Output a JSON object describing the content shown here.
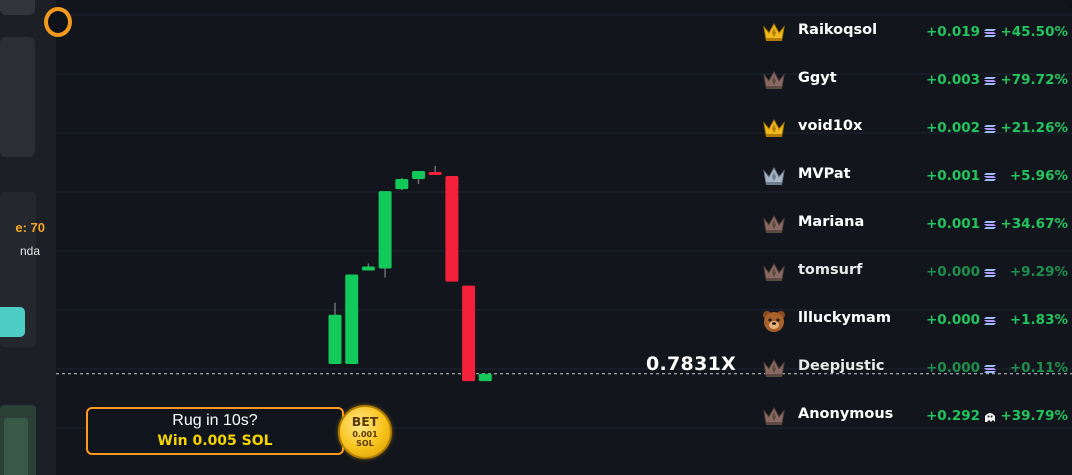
{
  "sidebar": {
    "time_text": "e: 70",
    "user_text": "nda"
  },
  "chart": {
    "multiplier": "0.7831X",
    "colors": {
      "up": "#12c95a",
      "down": "#f4213a"
    },
    "candles": [
      {
        "open": 0.88,
        "close": 1.37,
        "high": 1.49,
        "low": 0.88
      },
      {
        "open": 0.88,
        "close": 1.77,
        "high": 1.77,
        "low": 0.88
      },
      {
        "open": 1.81,
        "close": 1.85,
        "high": 1.88,
        "low": 1.81
      },
      {
        "open": 1.83,
        "close": 2.6,
        "high": 2.6,
        "low": 1.74
      },
      {
        "open": 2.62,
        "close": 2.72,
        "high": 2.73,
        "low": 2.61
      },
      {
        "open": 2.72,
        "close": 2.8,
        "high": 2.8,
        "low": 2.67
      },
      {
        "open": 2.79,
        "close": 2.77,
        "high": 2.85,
        "low": 2.76
      },
      {
        "open": 2.75,
        "close": 1.7,
        "high": 2.75,
        "low": 1.7
      },
      {
        "open": 1.66,
        "close": 0.71,
        "high": 1.66,
        "low": 0.71
      },
      {
        "open": 0.71,
        "close": 0.7831,
        "high": 0.7831,
        "low": 0.71
      }
    ]
  },
  "leaderboard": [
    {
      "name": "Raikoqsol",
      "amount": "+0.019",
      "pct": "+45.50%",
      "rank_icon": "gold-crown-icon",
      "dim": false
    },
    {
      "name": "Ggyt",
      "amount": "+0.003",
      "pct": "+79.72%",
      "rank_icon": "bronze-crown-icon",
      "dim": false
    },
    {
      "name": "void10x",
      "amount": "+0.002",
      "pct": "+21.26%",
      "rank_icon": "gold-crown-icon",
      "dim": false
    },
    {
      "name": "MVPat",
      "amount": "+0.001",
      "pct": "+5.96%",
      "rank_icon": "silver-crown-icon",
      "dim": false
    },
    {
      "name": "Mariana",
      "amount": "+0.001",
      "pct": "+34.67%",
      "rank_icon": "bronze-crown-icon",
      "dim": false
    },
    {
      "name": "tomsurf",
      "amount": "+0.000",
      "pct": "+9.29%",
      "rank_icon": "bronze-crown-icon",
      "dim": true
    },
    {
      "name": "llluckymam",
      "amount": "+0.000",
      "pct": "+1.83%",
      "rank_icon": "bear-icon",
      "dim": false
    },
    {
      "name": "Deepjustic",
      "amount": "+0.000",
      "pct": "+0.11%",
      "rank_icon": "bronze-crown-icon",
      "dim": true
    },
    {
      "name": "Anonymous",
      "amount": "+0.292",
      "pct": "+39.79%",
      "rank_icon": "bronze-crown-icon",
      "dim": false,
      "currency_icon": "ghost-icon"
    }
  ],
  "rug": {
    "title": "Rug in 10s?",
    "win": "Win 0.005 SOL",
    "bet_label": "BET",
    "bet_amount": "0.001",
    "bet_currency": "SOL"
  }
}
